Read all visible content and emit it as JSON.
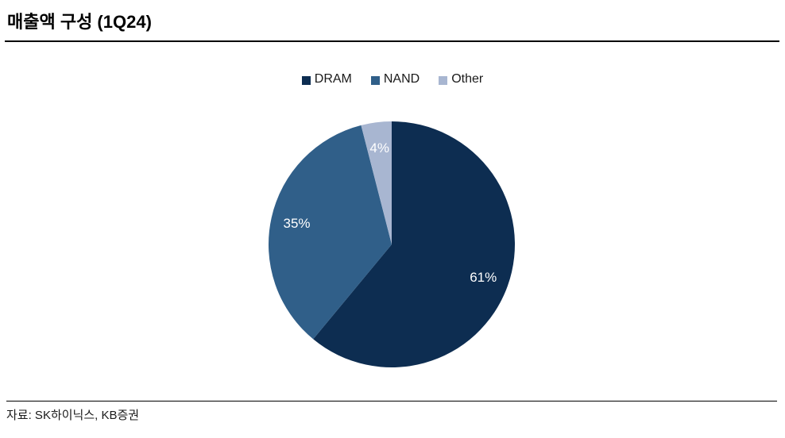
{
  "page": {
    "title": "매출액 구성 (1Q24)",
    "source": "자료: SK하이닉스, KB증권"
  },
  "chart_data": {
    "type": "pie",
    "title": "매출액 구성 (1Q24)",
    "legend_position": "top",
    "start_angle_deg": 0,
    "direction": "clockwise",
    "label_color": "#FFFFFF",
    "label_radius_factor": 0.79,
    "segments": [
      {
        "label": "DRAM",
        "value": 61,
        "display": "61%",
        "color": "#0D2D51"
      },
      {
        "label": "NAND",
        "value": 35,
        "display": "35%",
        "color": "#305F89"
      },
      {
        "label": "Other",
        "value": 4,
        "display": "4%",
        "color": "#A8B6D1"
      }
    ]
  }
}
